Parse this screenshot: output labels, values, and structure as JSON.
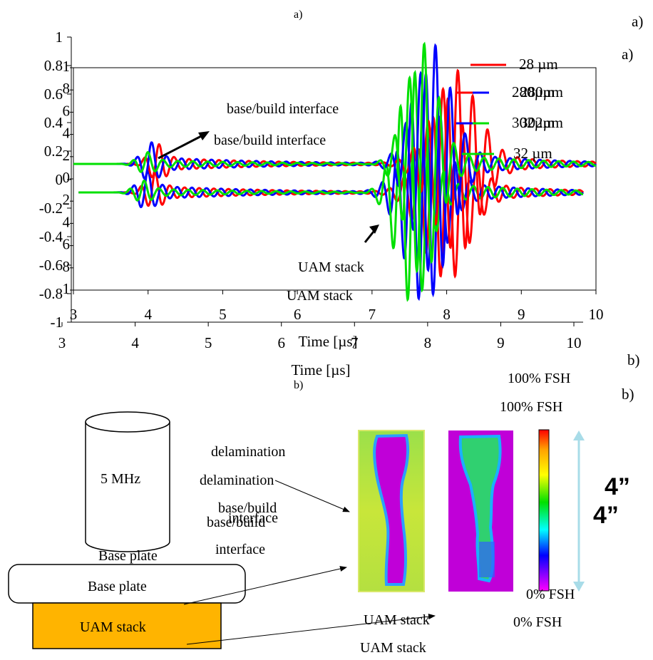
{
  "panel_labels": {
    "a_small": "a)",
    "a_right1": "a)",
    "a_right2": "a)",
    "b_small": "b)",
    "b_right1": "b)",
    "b_right2": "b)"
  },
  "chart_data": {
    "type": "line",
    "title": "",
    "xlabel": "Time [µs]",
    "ylabel": "",
    "xlim": [
      3,
      10
    ],
    "ylim_outer": [
      -1,
      1
    ],
    "ylim_inner": [
      -0.8,
      1
    ],
    "x_ticks": [
      "3",
      "4",
      "5",
      "6",
      "7",
      "8",
      "9",
      "10"
    ],
    "y_ticks_outer": [
      "1",
      "0.8",
      "0.6",
      "0.4",
      "0.2",
      "0",
      "-0.2",
      "-0.4",
      "-0.6",
      "-0.8",
      "-1"
    ],
    "y_ticks_inner": [
      "1",
      "8",
      "6",
      "4",
      "2",
      "0",
      "2",
      "4",
      "6",
      "8",
      "1"
    ],
    "grid": false,
    "legend_position": "top-right",
    "series": [
      {
        "name": "28 µm",
        "color": "#ff0000",
        "first_echo": {
          "t": 4.1,
          "amp": 0.1
        },
        "main_echo": {
          "t": 8.1,
          "amp": 0.58,
          "width": 0.42
        }
      },
      {
        "name": "280 µm",
        "color": "#0000ff",
        "first_echo": {
          "t": 4.0,
          "amp": 0.11
        },
        "main_echo": {
          "t": 7.8,
          "amp": 0.74,
          "width": 0.35
        }
      },
      {
        "name": "302 µm",
        "color": "#00e000",
        "first_echo": {
          "t": 3.95,
          "amp": 0.06
        },
        "main_echo": {
          "t": 7.65,
          "amp": 0.76,
          "width": 0.3
        }
      },
      {
        "name": "32 µm",
        "color": "#00e000",
        "first_echo": {
          "t": 3.95,
          "amp": 0.06
        },
        "main_echo": {
          "t": 7.65,
          "amp": 0.76,
          "width": 0.3
        }
      }
    ],
    "legend_labels": [
      "28 µm",
      "280µm",
      "280µm",
      "302µm",
      "302µm",
      "32 µm"
    ],
    "annotations": [
      "base/build interface",
      "base/build interface",
      "UAM stack",
      "UAM stack"
    ]
  },
  "diagram": {
    "transducer": "5 MHz",
    "base_plate": "Base plate",
    "base_plate_ghost": "Base plate",
    "stack": "UAM stack",
    "stack_color": "#ffb400",
    "delamination": "delamination",
    "base_build_1": "base/build",
    "interface_1": "interface",
    "base_build_2": "base/build",
    "interface_2": "interface",
    "uam_stack_1": "UAM stack",
    "uam_stack_2": "UAM stack",
    "fsh_100_a": "100% FSH",
    "fsh_100_b": "100% FSH",
    "fsh_0_a": "0% FSH",
    "fsh_0_b": "0% FSH",
    "size_a": "4”",
    "size_b": "4”"
  }
}
